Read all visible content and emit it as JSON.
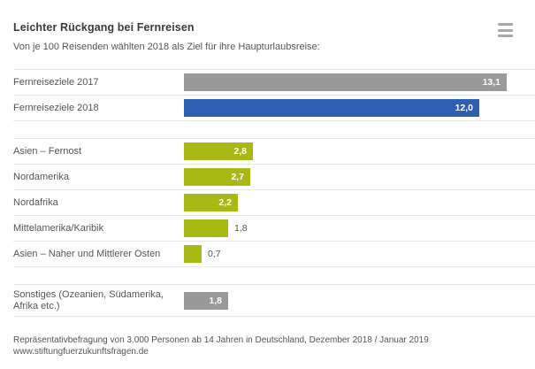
{
  "header": {
    "title": "Leichter Rückgang bei Fernreisen",
    "subtitle": "Von je 100 Reisenden wählten 2018 als Ziel für ihre Haupturlaubsreise:"
  },
  "menu": {
    "icon": "hamburger-menu-icon"
  },
  "colors": {
    "gray_bar": "#999999",
    "blue_bar": "#2d5fb3",
    "green_bar": "#a8b814",
    "divider": "#e8e8e8",
    "label_text": "#555555",
    "title_text": "#3b3b3b",
    "value_inside_text": "#ffffff"
  },
  "chart_data": {
    "type": "bar",
    "orientation": "horizontal",
    "title": "Leichter Rückgang bei Fernreisen",
    "subtitle": "Von je 100 Reisenden wählten 2018 als Ziel für ihre Haupturlaubsreise:",
    "xlim": [
      0,
      13.1
    ],
    "grid": false,
    "legend": false,
    "groups": [
      {
        "rows": [
          {
            "label": "Fernreiseziele 2017",
            "value": 13.1,
            "display": "13,1",
            "color": "gray",
            "value_inside": true
          },
          {
            "label": "Fernreiseziele 2018",
            "value": 12.0,
            "display": "12,0",
            "color": "blue",
            "value_inside": true
          }
        ]
      },
      {
        "rows": [
          {
            "label": "Asien – Fernost",
            "value": 2.8,
            "display": "2,8",
            "color": "green",
            "value_inside": true
          },
          {
            "label": "Nordamerika",
            "value": 2.7,
            "display": "2,7",
            "color": "green",
            "value_inside": true
          },
          {
            "label": "Nordafrika",
            "value": 2.2,
            "display": "2,2",
            "color": "green",
            "value_inside": true
          },
          {
            "label": "Mittelamerika/Karibik",
            "value": 1.8,
            "display": "1,8",
            "color": "green",
            "value_inside": false
          },
          {
            "label": "Asien – Naher und Mittlerer Osten",
            "value": 0.7,
            "display": "0,7",
            "color": "green",
            "value_inside": false
          }
        ]
      },
      {
        "rows": [
          {
            "label": "Sonstiges (Ozeanien, Südamerika, Afrika etc.)",
            "value": 1.8,
            "display": "1,8",
            "color": "gray",
            "value_inside": true
          }
        ]
      }
    ]
  },
  "footer": {
    "line1": "Repräsentativbefragung von 3.000 Personen ab 14 Jahren in Deutschland, Dezember 2018 / Januar 2019",
    "line2": "www.stiftungfuerzukunftsfragen.de"
  }
}
